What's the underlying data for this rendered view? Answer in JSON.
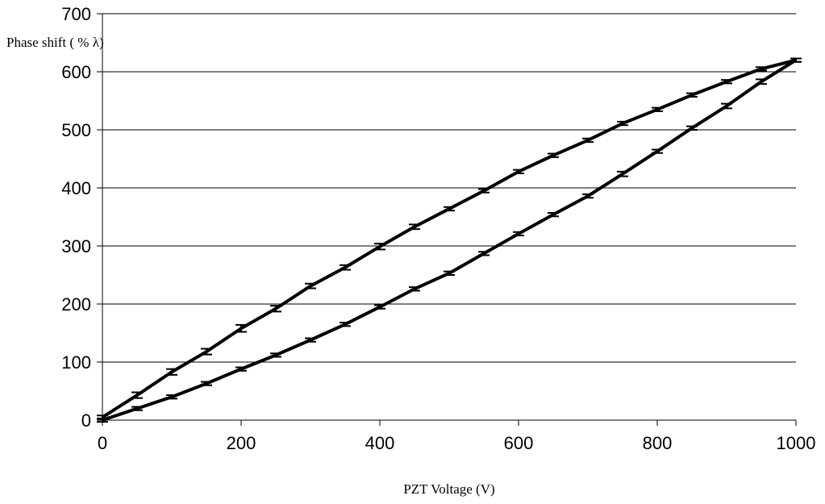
{
  "chart_data": {
    "type": "line",
    "y_label": "Phase shift ( % λ)",
    "x_label": "PZT Voltage (V)",
    "x": [
      0,
      50,
      100,
      150,
      200,
      250,
      300,
      350,
      400,
      450,
      500,
      550,
      600,
      650,
      700,
      750,
      800,
      850,
      900,
      950,
      1000
    ],
    "series": [
      {
        "color": "#000000",
        "values": [
          0,
          20,
          40,
          63,
          88,
          112,
          138,
          165,
          195,
          226,
          253,
          287,
          321,
          354,
          386,
          424,
          463,
          503,
          541,
          583,
          620
        ],
        "errors": [
          3,
          3,
          3,
          3,
          3,
          3,
          3,
          3,
          3,
          3,
          3,
          3,
          3,
          3,
          3,
          4,
          3,
          3,
          4,
          4,
          3
        ]
      },
      {
        "color": "#000000",
        "values": [
          5,
          43,
          83,
          118,
          158,
          192,
          231,
          263,
          299,
          333,
          364,
          395,
          428,
          456,
          482,
          511,
          535,
          560,
          583,
          605,
          620
        ],
        "errors": [
          3,
          5,
          5,
          5,
          6,
          5,
          4,
          4,
          5,
          4,
          3,
          3,
          3,
          3,
          3,
          3,
          3,
          3,
          3,
          3,
          3
        ]
      }
    ],
    "xlim": [
      0,
      1000
    ],
    "xticks": [
      0,
      200,
      400,
      600,
      800,
      1000
    ],
    "ylim": [
      0,
      700
    ],
    "yticks": [
      0,
      100,
      200,
      300,
      400,
      500,
      600,
      700
    ],
    "grid": true
  }
}
